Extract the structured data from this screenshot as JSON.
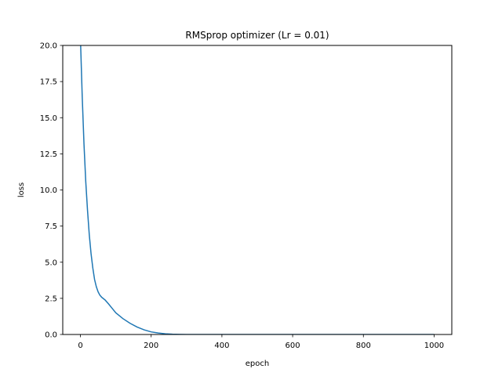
{
  "chart_data": {
    "type": "line",
    "title": "RMSprop optimizer (Lr = 0.01)",
    "xlabel": "epoch",
    "ylabel": "loss",
    "xlim": [
      -50,
      1050
    ],
    "ylim": [
      0,
      20
    ],
    "xticks": [
      0,
      200,
      400,
      600,
      800,
      1000
    ],
    "yticks": [
      0.0,
      2.5,
      5.0,
      7.5,
      10.0,
      12.5,
      15.0,
      17.5,
      20.0
    ],
    "xtick_labels": [
      "0",
      "200",
      "400",
      "600",
      "800",
      "1000"
    ],
    "ytick_labels": [
      "0.0",
      "2.5",
      "5.0",
      "7.5",
      "10.0",
      "12.5",
      "15.0",
      "17.5",
      "20.0"
    ],
    "grid": false,
    "line_color": "#1f77b4",
    "series": [
      {
        "x": [
          0,
          5,
          10,
          15,
          20,
          25,
          30,
          35,
          40,
          45,
          50,
          55,
          60,
          65,
          70,
          80,
          90,
          100,
          120,
          140,
          160,
          180,
          200,
          220,
          240,
          260,
          280,
          300,
          350,
          400,
          500,
          600,
          700,
          800,
          900,
          1000
        ],
        "values": [
          20.5,
          16.5,
          13.2,
          10.6,
          8.6,
          6.9,
          5.6,
          4.6,
          3.8,
          3.3,
          2.95,
          2.72,
          2.58,
          2.48,
          2.38,
          2.1,
          1.8,
          1.5,
          1.1,
          0.78,
          0.52,
          0.32,
          0.18,
          0.1,
          0.05,
          0.02,
          0.01,
          0.0,
          0.0,
          0.0,
          0.0,
          0.0,
          0.0,
          0.0,
          0.0,
          0.0
        ]
      }
    ]
  }
}
